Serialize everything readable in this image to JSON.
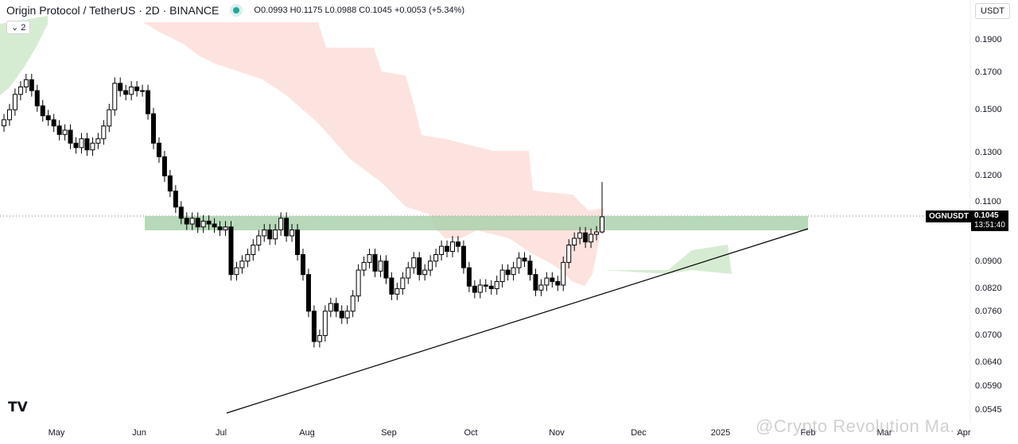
{
  "header": {
    "title": "Origin Protocol / TetherUS · 2D · BINANCE",
    "ohlc": "O0.0993 H0.1175 L0.0988 C0.1045 +0.0053 (+5.34%)",
    "indicator_count": "2",
    "currency": "USDT",
    "status_color": "#26a69a"
  },
  "price_tag": {
    "symbol": "OGNUSDT",
    "price": "0.1045",
    "countdown": "13:51:40"
  },
  "watermark": "@Crypto Revolution Ma...",
  "logo": "TV",
  "chart_data": {
    "type": "candlestick",
    "scale": "log",
    "ylim": [
      0.0545,
      0.2
    ],
    "y_ticks": [
      "0.1900",
      "0.1700",
      "0.1500",
      "0.1300",
      "0.1200",
      "0.1100",
      "0.0900",
      "0.0820",
      "0.0760",
      "0.0700",
      "0.0640",
      "0.0590",
      "0.0545"
    ],
    "y_tick_values": [
      0.19,
      0.17,
      0.15,
      0.13,
      0.12,
      0.11,
      0.09,
      0.082,
      0.076,
      0.07,
      0.064,
      0.059,
      0.0545
    ],
    "x_ticks": [
      "May",
      "Jun",
      "Jul",
      "Aug",
      "Sep",
      "Oct",
      "Nov",
      "Dec",
      "2025",
      "Feb",
      "Mar",
      "Apr"
    ],
    "closes": [
      0.145,
      0.15,
      0.158,
      0.162,
      0.166,
      0.16,
      0.152,
      0.147,
      0.145,
      0.142,
      0.138,
      0.14,
      0.134,
      0.132,
      0.136,
      0.131,
      0.134,
      0.136,
      0.142,
      0.15,
      0.164,
      0.16,
      0.158,
      0.162,
      0.16,
      0.16,
      0.148,
      0.134,
      0.128,
      0.12,
      0.114,
      0.108,
      0.104,
      0.102,
      0.104,
      0.101,
      0.103,
      0.102,
      0.101,
      0.1,
      0.101,
      0.086,
      0.088,
      0.09,
      0.092,
      0.095,
      0.098,
      0.1,
      0.097,
      0.1,
      0.104,
      0.098,
      0.1,
      0.092,
      0.086,
      0.076,
      0.0686,
      0.07,
      0.076,
      0.078,
      0.076,
      0.0743,
      0.076,
      0.08,
      0.0873,
      0.0896,
      0.092,
      0.087,
      0.09,
      0.085,
      0.0805,
      0.082,
      0.085,
      0.088,
      0.091,
      0.086,
      0.0873,
      0.09,
      0.092,
      0.0946,
      0.093,
      0.096,
      0.0946,
      0.088,
      0.0827,
      0.081,
      0.083,
      0.0827,
      0.082,
      0.084,
      0.0873,
      0.086,
      0.088,
      0.0909,
      0.09,
      0.086,
      0.0816,
      0.083,
      0.085,
      0.084,
      0.083,
      0.0896,
      0.095,
      0.0972,
      0.099,
      0.096,
      0.0985,
      0.0993,
      0.1045
    ],
    "last_candle": {
      "open": 0.0993,
      "high": 0.1175,
      "low": 0.0988,
      "close": 0.1045
    },
    "support_zone": [
      0.1005,
      0.1045
    ],
    "trendline": [
      {
        "date": "Jul",
        "price": 0.0545
      },
      {
        "date": "Feb",
        "price": 0.1005
      }
    ],
    "colors": {
      "candle": "#000000",
      "zone": "#a5cfa9",
      "cloud_bear": "#fde3df",
      "cloud_bull": "#d6ecd2"
    }
  }
}
